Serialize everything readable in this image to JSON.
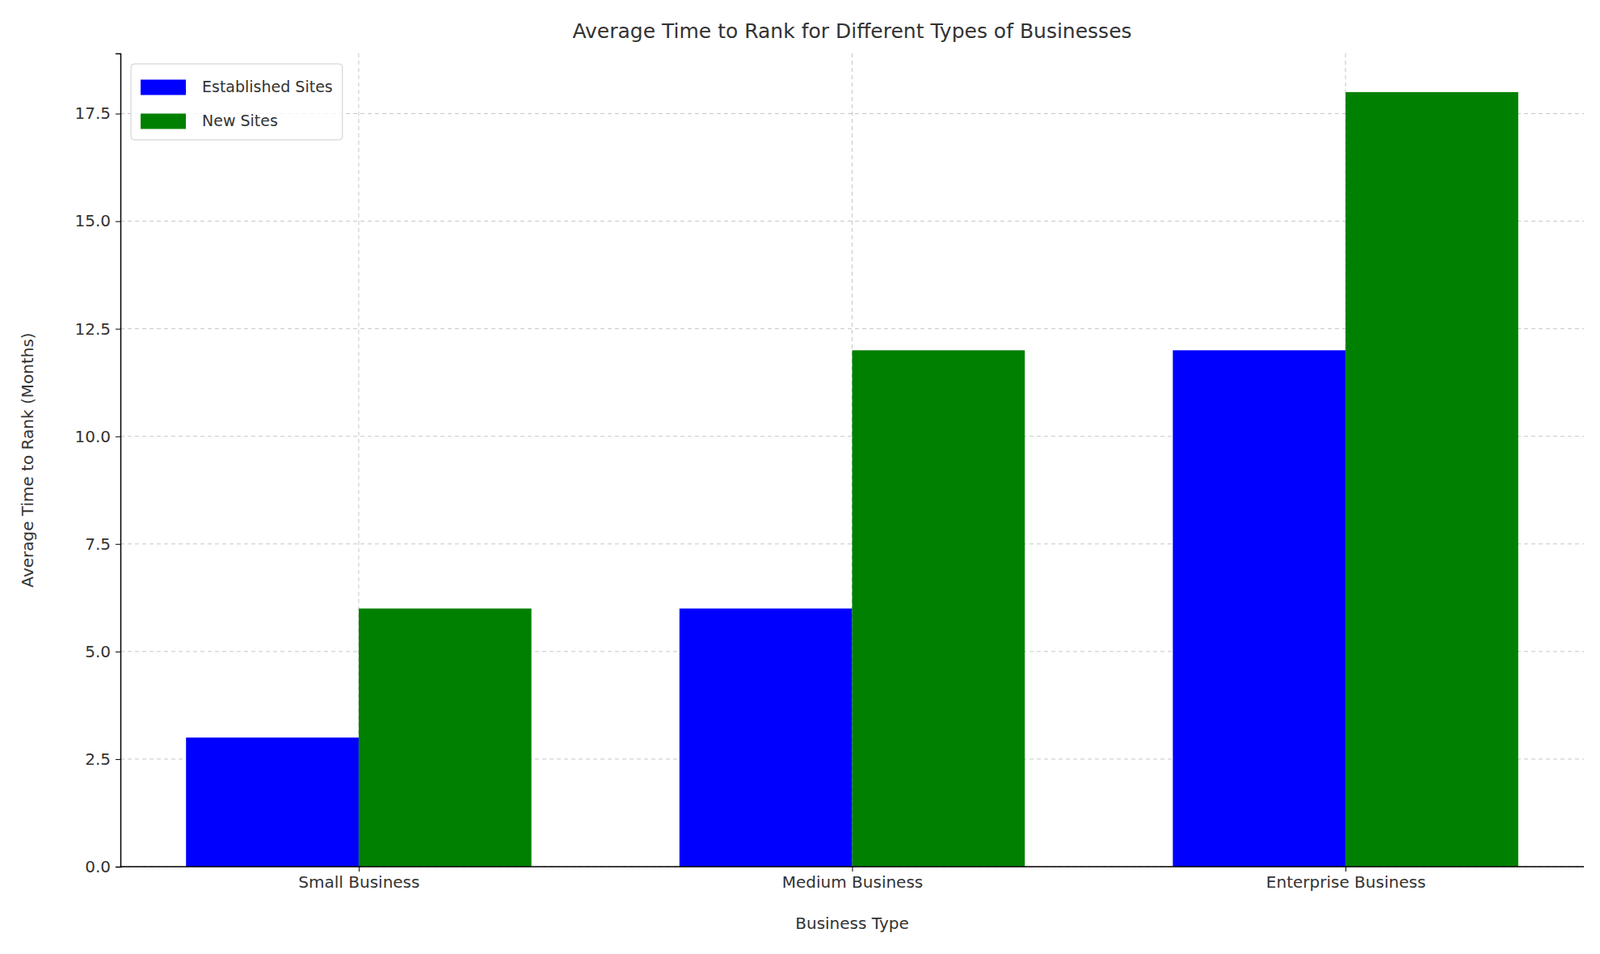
{
  "chart_data": {
    "type": "bar",
    "title": "Average Time to Rank for Different Types of Businesses",
    "x_label": "Business Type",
    "y_label": "Average Time to Rank (Months)",
    "categories": [
      "Small Business",
      "Medium Business",
      "Enterprise Business"
    ],
    "series": [
      {
        "name": "Established Sites",
        "color": "#0000ff",
        "values": [
          3,
          6,
          12
        ]
      },
      {
        "name": "New Sites",
        "color": "#008000",
        "values": [
          6,
          12,
          18
        ]
      }
    ],
    "ylim": [
      0,
      18.9
    ],
    "yticks": [
      {
        "value": 0,
        "label": "0.0"
      },
      {
        "value": 2.5,
        "label": "2.5"
      },
      {
        "value": 5,
        "label": "5.0"
      },
      {
        "value": 7.5,
        "label": "7.5"
      },
      {
        "value": 10,
        "label": "10.0"
      },
      {
        "value": 12.5,
        "label": "12.5"
      },
      {
        "value": 15,
        "label": "15.0"
      },
      {
        "value": 17.5,
        "label": "17.5"
      }
    ],
    "grid": true,
    "legend": "upper left"
  }
}
